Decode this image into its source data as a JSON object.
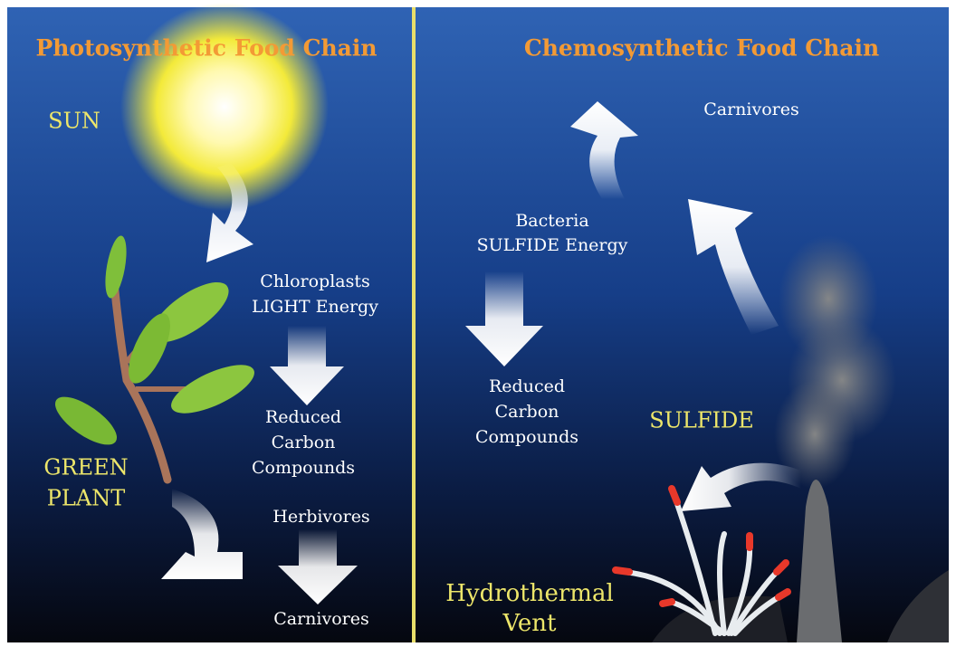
{
  "left": {
    "title": "Photosynthetic Food Chain",
    "sun": "SUN",
    "chloroplasts": [
      "Chloroplasts",
      "LIGHT Energy"
    ],
    "reduced": [
      "Reduced",
      "Carbon",
      "Compounds"
    ],
    "plant": [
      "GREEN",
      "PLANT"
    ],
    "herbivores": "Herbivores",
    "carnivores": "Carnivores"
  },
  "right": {
    "title": "Chemosynthetic Food Chain",
    "carnivores": "Carnivores",
    "bacteria": [
      "Bacteria",
      "SULFIDE Energy"
    ],
    "reduced": [
      "Reduced",
      "Carbon",
      "Compounds"
    ],
    "sulfide": "SULFIDE",
    "vent": [
      "Hydrothermal",
      "Vent"
    ]
  }
}
